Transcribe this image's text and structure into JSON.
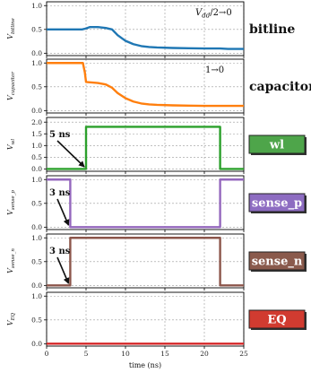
{
  "chart_data": {
    "type": "line",
    "xlabel": "time (ns)",
    "xlim": [
      0,
      25
    ],
    "xticks": [
      "0",
      "5",
      "10",
      "15",
      "20",
      "25"
    ],
    "panels": [
      {
        "id": "bitline",
        "ylabel_main": "V",
        "ylabel_sub": "bitline",
        "ylim": [
          -0.05,
          1.08
        ],
        "yticks": [
          "0.0",
          "0.5",
          "1.0"
        ],
        "color": "#1f77b4",
        "annotation_main": "V",
        "annotation_sub": "dd",
        "annotation_rest": "/2→0",
        "side_label": "bitline",
        "x": [
          0,
          4.5,
          5,
          5.5,
          6.5,
          7.5,
          8.3,
          9,
          10,
          11,
          12,
          13,
          14,
          16,
          18,
          20,
          22,
          23,
          25
        ],
        "y": [
          0.5,
          0.5,
          0.52,
          0.55,
          0.55,
          0.53,
          0.5,
          0.38,
          0.26,
          0.19,
          0.15,
          0.13,
          0.12,
          0.11,
          0.105,
          0.1,
          0.1,
          0.09,
          0.09
        ]
      },
      {
        "id": "capacitor",
        "ylabel_main": "V",
        "ylabel_sub": "capacitor",
        "ylim": [
          -0.05,
          1.08
        ],
        "yticks": [
          "0.0",
          "0.5",
          "1.0"
        ],
        "color": "#ff7f0e",
        "annotation_plain": "1→0",
        "side_label": "capacitor",
        "x": [
          0,
          4.6,
          4.85,
          5,
          6.5,
          7.5,
          8.3,
          9,
          10,
          11,
          12,
          13,
          14,
          16,
          18,
          20,
          22,
          25
        ],
        "y": [
          1.0,
          1.0,
          0.8,
          0.6,
          0.58,
          0.55,
          0.48,
          0.37,
          0.26,
          0.19,
          0.15,
          0.13,
          0.12,
          0.11,
          0.105,
          0.1,
          0.1,
          0.1
        ]
      },
      {
        "id": "wl",
        "ylabel_main": "V",
        "ylabel_sub": "wl",
        "ylim": [
          -0.1,
          2.2
        ],
        "yticks": [
          "0.0",
          "0.5",
          "1.0",
          "1.5",
          "2.0"
        ],
        "color": "#2ca02c",
        "badge_text": "wl",
        "badge_color": "#4ea54a",
        "arrow_label": "5 ns",
        "arrow_x": 5,
        "x": [
          0,
          5,
          5,
          22,
          22,
          25
        ],
        "y": [
          0,
          0,
          1.8,
          1.8,
          0,
          0
        ]
      },
      {
        "id": "sense_p",
        "ylabel_main": "V",
        "ylabel_sub": "sense_p",
        "ylim": [
          -0.05,
          1.08
        ],
        "yticks": [
          "0.0",
          "0.5",
          "1.0"
        ],
        "color": "#9467bd",
        "badge_text": "sense_p",
        "badge_color": "#8d6cc1",
        "arrow_label": "3 ns",
        "arrow_x": 3,
        "x": [
          0,
          3,
          3,
          22,
          22,
          25
        ],
        "y": [
          1,
          1,
          0,
          0,
          1,
          1
        ]
      },
      {
        "id": "sense_n",
        "ylabel_main": "V",
        "ylabel_sub": "sense_n",
        "ylim": [
          -0.05,
          1.08
        ],
        "yticks": [
          "0.0",
          "0.5",
          "1.0"
        ],
        "color": "#8c564b",
        "badge_text": "sense_n",
        "badge_color": "#8a5a4c",
        "arrow_label": "3 ns",
        "arrow_x": 3,
        "x": [
          0,
          3,
          3,
          22,
          22,
          25
        ],
        "y": [
          0,
          0,
          1,
          1,
          0,
          0
        ]
      },
      {
        "id": "EQ",
        "ylabel_main": "V",
        "ylabel_sub": "EQ",
        "ylim": [
          -0.05,
          1.08
        ],
        "yticks": [
          "0.0",
          "0.5",
          "1.0"
        ],
        "color": "#d62728",
        "badge_text": "EQ",
        "badge_color": "#d13b30",
        "x": [
          0,
          25
        ],
        "y": [
          0,
          0
        ]
      }
    ]
  }
}
